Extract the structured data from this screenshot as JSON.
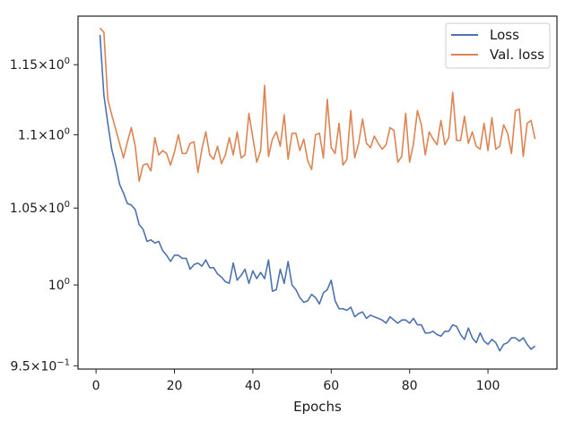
{
  "chart_data": {
    "type": "line",
    "xlabel": "Epochs",
    "ylabel": "",
    "title": "",
    "yscale": "log",
    "xlim": [
      -4.6,
      117.6
    ],
    "ylim": [
      0.948,
      1.186
    ],
    "grid": false,
    "legend": "upper-right",
    "x_ticks": [
      {
        "value": 0,
        "label": "0"
      },
      {
        "value": 20,
        "label": "20"
      },
      {
        "value": 40,
        "label": "40"
      },
      {
        "value": 60,
        "label": "60"
      },
      {
        "value": 80,
        "label": "80"
      },
      {
        "value": 100,
        "label": "100"
      }
    ],
    "y_ticks": [
      {
        "value": 0.95,
        "base": "9.5",
        "exp": "−1",
        "times": true
      },
      {
        "value": 1.0,
        "base": "10",
        "exp": "0",
        "times": false
      },
      {
        "value": 1.05,
        "base": "1.05",
        "exp": "0",
        "times": true
      },
      {
        "value": 1.1,
        "base": "1.1",
        "exp": "0",
        "times": true
      },
      {
        "value": 1.15,
        "base": "1.15",
        "exp": "0",
        "times": true
      }
    ],
    "series": [
      {
        "name": "Loss",
        "color": "#4c72b0",
        "x": [
          1,
          2,
          3,
          4,
          5,
          6,
          7,
          8,
          9,
          10,
          11,
          12,
          13,
          14,
          15,
          16,
          17,
          18,
          19,
          20,
          21,
          22,
          23,
          24,
          25,
          26,
          27,
          28,
          29,
          30,
          31,
          32,
          33,
          34,
          35,
          36,
          37,
          38,
          39,
          40,
          41,
          42,
          43,
          44,
          45,
          46,
          47,
          48,
          49,
          50,
          51,
          52,
          53,
          54,
          55,
          56,
          57,
          58,
          59,
          60,
          61,
          62,
          63,
          64,
          65,
          66,
          67,
          68,
          69,
          70,
          71,
          72,
          73,
          74,
          75,
          76,
          77,
          78,
          79,
          80,
          81,
          82,
          83,
          84,
          85,
          86,
          87,
          88,
          89,
          90,
          91,
          92,
          93,
          94,
          95,
          96,
          97,
          98,
          99,
          100,
          101,
          102,
          103,
          104,
          105,
          106,
          107,
          108,
          109,
          110,
          111,
          112
        ],
        "values": [
          1.172,
          1.128,
          1.108,
          1.09,
          1.079,
          1.066,
          1.06,
          1.053,
          1.052,
          1.049,
          1.039,
          1.036,
          1.028,
          1.029,
          1.027,
          1.028,
          1.022,
          1.019,
          1.015,
          1.019,
          1.019,
          1.017,
          1.017,
          1.01,
          1.013,
          1.014,
          1.012,
          1.016,
          1.011,
          1.011,
          1.007,
          1.005,
          1.002,
          1.001,
          1.014,
          1.003,
          1.006,
          1.01,
          1.001,
          1.009,
          1.004,
          1.008,
          1.004,
          1.016,
          0.996,
          0.997,
          1.01,
          1.001,
          1.015,
          1.0,
          0.997,
          0.992,
          0.989,
          0.99,
          0.994,
          0.992,
          0.988,
          0.995,
          0.997,
          1.003,
          0.99,
          0.985,
          0.985,
          0.984,
          0.986,
          0.98,
          0.982,
          0.983,
          0.979,
          0.981,
          0.98,
          0.979,
          0.978,
          0.976,
          0.98,
          0.978,
          0.976,
          0.978,
          0.978,
          0.976,
          0.979,
          0.975,
          0.975,
          0.97,
          0.97,
          0.971,
          0.969,
          0.968,
          0.971,
          0.971,
          0.975,
          0.974,
          0.969,
          0.966,
          0.973,
          0.967,
          0.964,
          0.97,
          0.965,
          0.963,
          0.966,
          0.964,
          0.959,
          0.963,
          0.964,
          0.967,
          0.967,
          0.965,
          0.967,
          0.963,
          0.96,
          0.962
        ]
      },
      {
        "name": "Val. loss",
        "color": "#dd8452",
        "x": [
          1,
          2,
          3,
          4,
          5,
          6,
          7,
          8,
          9,
          10,
          11,
          12,
          13,
          14,
          15,
          16,
          17,
          18,
          19,
          20,
          21,
          22,
          23,
          24,
          25,
          26,
          27,
          28,
          29,
          30,
          31,
          32,
          33,
          34,
          35,
          36,
          37,
          38,
          39,
          40,
          41,
          42,
          43,
          44,
          45,
          46,
          47,
          48,
          49,
          50,
          51,
          52,
          53,
          54,
          55,
          56,
          57,
          58,
          59,
          60,
          61,
          62,
          63,
          64,
          65,
          66,
          67,
          68,
          69,
          70,
          71,
          72,
          73,
          74,
          75,
          76,
          77,
          78,
          79,
          80,
          81,
          82,
          83,
          84,
          85,
          86,
          87,
          88,
          89,
          90,
          91,
          92,
          93,
          94,
          95,
          96,
          97,
          98,
          99,
          100,
          101,
          102,
          103,
          104,
          105,
          106,
          107,
          108,
          109,
          110,
          111,
          112
        ],
        "values": [
          1.177,
          1.174,
          1.125,
          1.114,
          1.104,
          1.094,
          1.084,
          1.095,
          1.105,
          1.092,
          1.068,
          1.079,
          1.08,
          1.075,
          1.098,
          1.086,
          1.089,
          1.087,
          1.079,
          1.088,
          1.1,
          1.087,
          1.087,
          1.094,
          1.095,
          1.074,
          1.09,
          1.102,
          1.086,
          1.083,
          1.092,
          1.08,
          1.086,
          1.098,
          1.086,
          1.102,
          1.084,
          1.086,
          1.115,
          1.098,
          1.081,
          1.089,
          1.135,
          1.085,
          1.097,
          1.102,
          1.092,
          1.114,
          1.083,
          1.101,
          1.101,
          1.089,
          1.097,
          1.082,
          1.076,
          1.1,
          1.101,
          1.084,
          1.125,
          1.091,
          1.087,
          1.108,
          1.079,
          1.083,
          1.117,
          1.084,
          1.094,
          1.111,
          1.094,
          1.091,
          1.099,
          1.094,
          1.09,
          1.093,
          1.105,
          1.103,
          1.081,
          1.085,
          1.115,
          1.081,
          1.094,
          1.117,
          1.107,
          1.086,
          1.102,
          1.097,
          1.093,
          1.11,
          1.093,
          1.098,
          1.13,
          1.096,
          1.096,
          1.113,
          1.094,
          1.102,
          1.092,
          1.09,
          1.108,
          1.089,
          1.112,
          1.09,
          1.092,
          1.107,
          1.101,
          1.087,
          1.117,
          1.118,
          1.085,
          1.108,
          1.11,
          1.097
        ]
      }
    ]
  }
}
